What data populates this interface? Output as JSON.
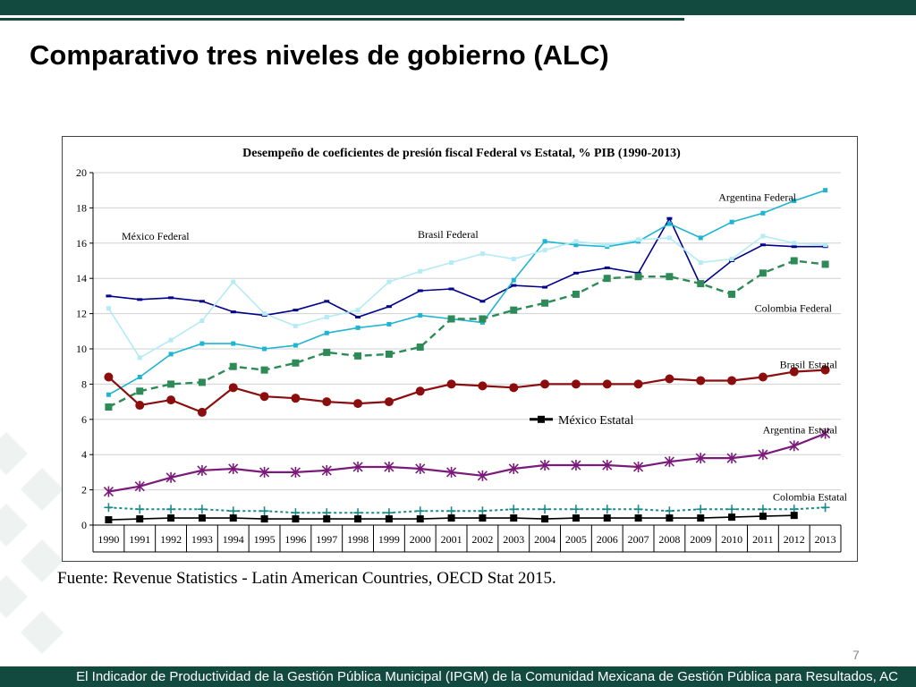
{
  "slide": {
    "title": "Comparativo tres niveles de gobierno (ALC)",
    "source": "Fuente: Revenue Statistics - Latin American Countries, OECD Stat 2015.",
    "page_number": "7",
    "footer": "El Indicador de Productividad de la Gestión Pública Municipal (IPGM) de la Comunidad Mexicana de Gestión Pública para Resultados, AC"
  },
  "chart_data": {
    "type": "line",
    "title": "Desempeño de coeficientes de presión fiscal Federal vs Estatal, % PIB (1990-2013)",
    "xlabel": "",
    "ylabel": "",
    "ylim": [
      0,
      20
    ],
    "yticks": [
      0,
      2,
      4,
      6,
      8,
      10,
      12,
      14,
      16,
      18,
      20
    ],
    "grid": true,
    "legend_position": "center-right",
    "legend_entries": [
      "México Estatal"
    ],
    "x": [
      "1990",
      "1991",
      "1992",
      "1993",
      "1994",
      "1995",
      "1996",
      "1997",
      "1998",
      "1999",
      "2000",
      "2001",
      "2002",
      "2003",
      "2004",
      "2005",
      "2006",
      "2007",
      "2008",
      "2009",
      "2010",
      "2011",
      "2012",
      "2013"
    ],
    "series": [
      {
        "name": "México Federal",
        "color": "#00008b",
        "dash": "solid",
        "marker": "dash",
        "values": [
          13.0,
          12.8,
          12.9,
          12.7,
          12.1,
          11.9,
          12.2,
          12.7,
          11.8,
          12.4,
          13.3,
          13.4,
          12.7,
          13.6,
          13.5,
          14.3,
          14.6,
          14.3,
          17.4,
          13.6,
          15.0,
          15.9,
          15.8,
          15.8
        ]
      },
      {
        "name": "Argentina Federal",
        "color": "#1eb4d2",
        "dash": "solid",
        "marker": "square-small",
        "values": [
          7.4,
          8.4,
          9.7,
          10.3,
          10.3,
          10.0,
          10.2,
          10.9,
          11.2,
          11.4,
          11.9,
          11.7,
          11.5,
          13.9,
          16.1,
          15.9,
          15.8,
          16.1,
          17.1,
          16.3,
          17.2,
          17.7,
          18.4,
          19.0
        ]
      },
      {
        "name": "Brasil Federal",
        "color": "#b4ebf5",
        "dash": "solid",
        "marker": "square-small",
        "values": [
          12.3,
          9.5,
          10.5,
          11.6,
          13.8,
          12.0,
          11.3,
          11.8,
          12.2,
          13.8,
          14.4,
          14.9,
          15.4,
          15.1,
          15.6,
          16.1,
          15.9,
          16.2,
          16.3,
          14.9,
          15.1,
          16.4,
          16.0,
          15.9
        ]
      },
      {
        "name": "Colombia Federal",
        "color": "#2e8b57",
        "dash": "dashed",
        "marker": "square",
        "values": [
          6.7,
          7.6,
          8.0,
          8.1,
          9.0,
          8.8,
          9.2,
          9.8,
          9.6,
          9.7,
          10.1,
          11.7,
          11.7,
          12.2,
          12.6,
          13.1,
          14.0,
          14.1,
          14.1,
          13.7,
          13.1,
          14.3,
          15.0,
          14.8
        ]
      },
      {
        "name": "Brasil Estatal",
        "color": "#8b0d0d",
        "dash": "solid",
        "marker": "circle",
        "values": [
          8.4,
          6.8,
          7.1,
          6.4,
          7.8,
          7.3,
          7.2,
          7.0,
          6.9,
          7.0,
          7.6,
          8.0,
          7.9,
          7.8,
          8.0,
          8.0,
          8.0,
          8.0,
          8.3,
          8.2,
          8.2,
          8.4,
          8.7,
          8.8
        ]
      },
      {
        "name": "Argentina Estatal",
        "color": "#7a1a7a",
        "dash": "solid",
        "marker": "asterisk",
        "values": [
          1.9,
          2.2,
          2.7,
          3.1,
          3.2,
          3.0,
          3.0,
          3.1,
          3.3,
          3.3,
          3.2,
          3.0,
          2.8,
          3.2,
          3.4,
          3.4,
          3.4,
          3.3,
          3.6,
          3.8,
          3.8,
          4.0,
          4.5,
          5.2
        ]
      },
      {
        "name": "Colombia Estatal",
        "color": "#1a8a8a",
        "dash": "dotted",
        "marker": "plus",
        "values": [
          1.0,
          0.9,
          0.9,
          0.9,
          0.8,
          0.8,
          0.7,
          0.7,
          0.7,
          0.7,
          0.8,
          0.8,
          0.8,
          0.9,
          0.9,
          0.9,
          0.9,
          0.9,
          0.8,
          0.9,
          0.9,
          0.9,
          0.9,
          1.0
        ]
      },
      {
        "name": "México Estatal",
        "color": "#000000",
        "dash": "solid",
        "marker": "square",
        "values": [
          0.3,
          0.35,
          0.4,
          0.4,
          0.4,
          0.35,
          0.35,
          0.35,
          0.35,
          0.35,
          0.35,
          0.4,
          0.4,
          0.4,
          0.35,
          0.4,
          0.4,
          0.4,
          0.4,
          0.4,
          0.45,
          0.5,
          0.55,
          null
        ]
      }
    ],
    "annotations": [
      {
        "text": "México Federal",
        "series": "México Federal"
      },
      {
        "text": "Argentina Federal",
        "series": "Argentina Federal"
      },
      {
        "text": "Brasil Federal",
        "series": "Brasil Federal"
      },
      {
        "text": "Colombia Federal",
        "series": "Colombia Federal"
      },
      {
        "text": "Brasil Estatal",
        "series": "Brasil Estatal"
      },
      {
        "text": "Argentina Estatal",
        "series": "Argentina Estatal"
      },
      {
        "text": "Colombia Estatal",
        "series": "Colombia Estatal"
      }
    ]
  }
}
